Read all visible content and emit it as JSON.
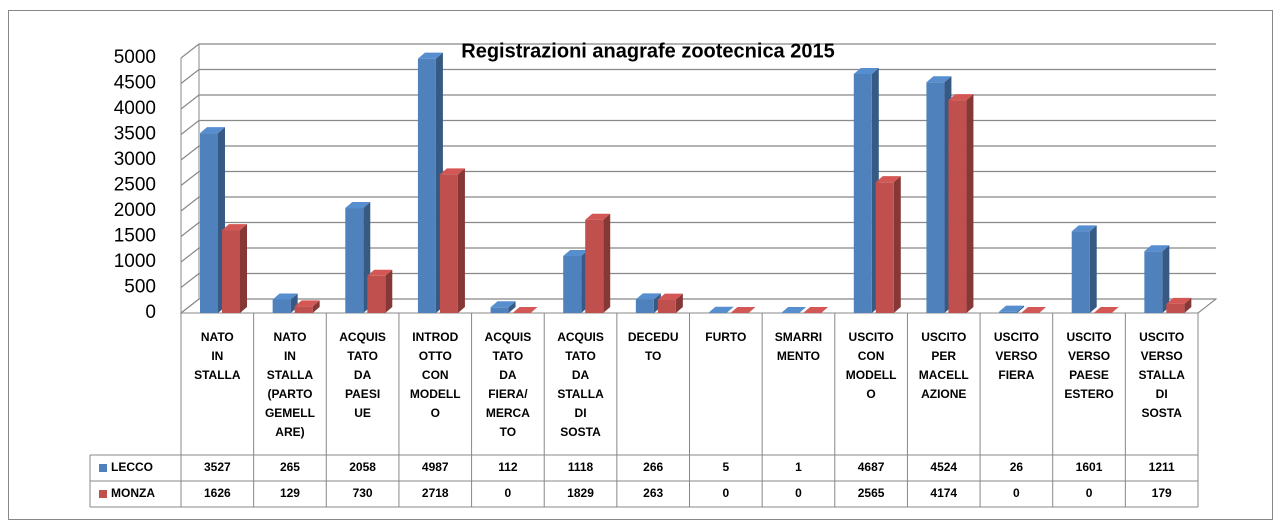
{
  "chart_data": {
    "type": "bar3d",
    "title": "Registrazioni anagrafe zootecnica 2015",
    "categories": [
      "NATO IN STALLA",
      "NATO IN STALLA (PARTO GEMELL ARE)",
      "ACQUIS TATO DA PAESI UE",
      "INTROD OTTO CON MODELL O",
      "ACQUIS TATO DA FIERA/ MERCA TO",
      "ACQUIS TATO DA STALLA DI SOSTA",
      "DECEDU TO",
      "FURTO",
      "SMARRI MENTO",
      "USCITO CON MODELL O",
      "USCITO PER MACELL AZIONE",
      "USCITO VERSO FIERA",
      "USCITO VERSO PAESE ESTERO",
      "USCITO VERSO STALLA DI SOSTA"
    ],
    "series": [
      {
        "name": "LECCO",
        "color": "#4f81bd",
        "values": [
          3527,
          265,
          2058,
          4987,
          112,
          1118,
          266,
          5,
          1,
          4687,
          4524,
          26,
          1601,
          1211
        ]
      },
      {
        "name": "MONZA",
        "color": "#c0504d",
        "values": [
          1626,
          129,
          730,
          2718,
          0,
          1829,
          263,
          0,
          0,
          2565,
          4174,
          0,
          0,
          179
        ]
      }
    ],
    "ylim": [
      0,
      5000
    ],
    "yticks": [
      0,
      500,
      1000,
      1500,
      2000,
      2500,
      3000,
      3500,
      4000,
      4500,
      5000
    ],
    "grid": true
  }
}
